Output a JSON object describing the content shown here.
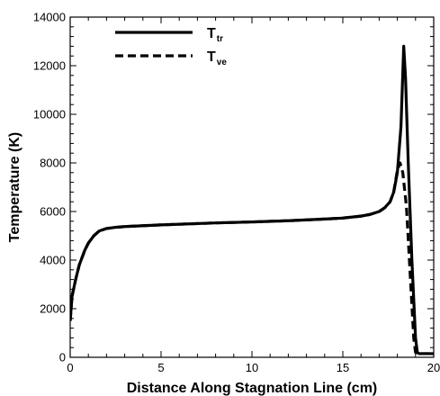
{
  "chart_data": {
    "type": "line",
    "title": "",
    "xlabel": "Distance Along Stagnation Line (cm)",
    "ylabel": "Temperature (K)",
    "xlim": [
      0,
      20
    ],
    "ylim": [
      0,
      14000
    ],
    "xticks": [
      0,
      5,
      10,
      15,
      20
    ],
    "yticks": [
      0,
      2000,
      4000,
      6000,
      8000,
      10000,
      12000,
      14000
    ],
    "xtick_labels": [
      "0",
      "5",
      "10",
      "15",
      "20"
    ],
    "ytick_labels": [
      "0",
      "2000",
      "4000",
      "6000",
      "8000",
      "10000",
      "12000",
      "14000"
    ],
    "grid": false,
    "legend_position": "top-left",
    "series": [
      {
        "name": "T",
        "name_subscript": "tr",
        "style": "solid",
        "color": "#000000",
        "x": [
          0,
          0.1,
          0.3,
          0.5,
          0.8,
          1.0,
          1.3,
          1.6,
          2.0,
          2.5,
          3.0,
          5.0,
          8.0,
          10.0,
          12.0,
          14.0,
          15.0,
          16.0,
          16.5,
          17.0,
          17.3,
          17.6,
          17.8,
          18.0,
          18.2,
          18.35,
          18.45,
          18.6,
          18.8,
          19.0,
          19.1,
          19.2,
          19.5,
          20.0
        ],
        "y": [
          1500,
          2500,
          3200,
          3800,
          4400,
          4700,
          5000,
          5200,
          5300,
          5350,
          5380,
          5450,
          5530,
          5570,
          5620,
          5690,
          5730,
          5810,
          5880,
          6000,
          6150,
          6400,
          6800,
          7600,
          9500,
          12800,
          11500,
          8000,
          4000,
          800,
          200,
          150,
          150,
          150
        ]
      },
      {
        "name": "T",
        "name_subscript": "ve",
        "style": "dashed",
        "color": "#000000",
        "x": [
          0,
          0.1,
          0.3,
          0.5,
          0.8,
          1.0,
          1.3,
          1.6,
          2.0,
          2.5,
          3.0,
          5.0,
          8.0,
          10.0,
          12.0,
          14.0,
          15.0,
          16.0,
          16.5,
          17.0,
          17.3,
          17.6,
          17.8,
          18.0,
          18.15,
          18.3,
          18.5,
          18.7,
          18.9,
          19.0,
          19.2,
          20.0
        ],
        "y": [
          1500,
          2500,
          3200,
          3800,
          4400,
          4700,
          5000,
          5200,
          5300,
          5350,
          5380,
          5450,
          5530,
          5570,
          5620,
          5690,
          5730,
          5810,
          5880,
          6000,
          6150,
          6400,
          6800,
          7700,
          8000,
          7600,
          6200,
          3500,
          800,
          200,
          150,
          150
        ]
      }
    ]
  }
}
